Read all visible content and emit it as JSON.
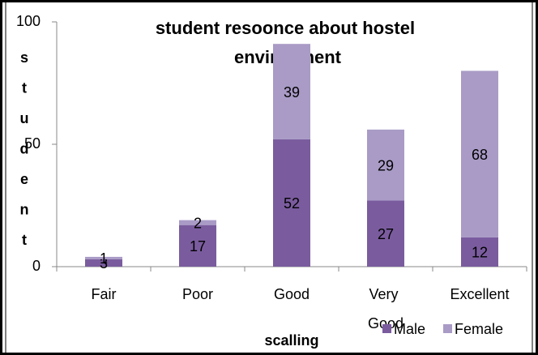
{
  "chart_data": {
    "type": "bar",
    "stacked": true,
    "title": "student resoonce about hostel environment",
    "y_label": "student",
    "x_label": "scalling",
    "categories": [
      "Fair",
      "Poor",
      "Good",
      "Very Good",
      "Excellent"
    ],
    "series": [
      {
        "name": "Male",
        "color": "#7a5c9e",
        "values": [
          3,
          17,
          52,
          27,
          12
        ]
      },
      {
        "name": "Female",
        "color": "#a99bc6",
        "values": [
          1,
          2,
          39,
          29,
          68
        ]
      }
    ],
    "ylim": [
      0,
      100
    ],
    "yticks": [
      0,
      50,
      100
    ],
    "grid": false,
    "legend": "bottom-right"
  }
}
